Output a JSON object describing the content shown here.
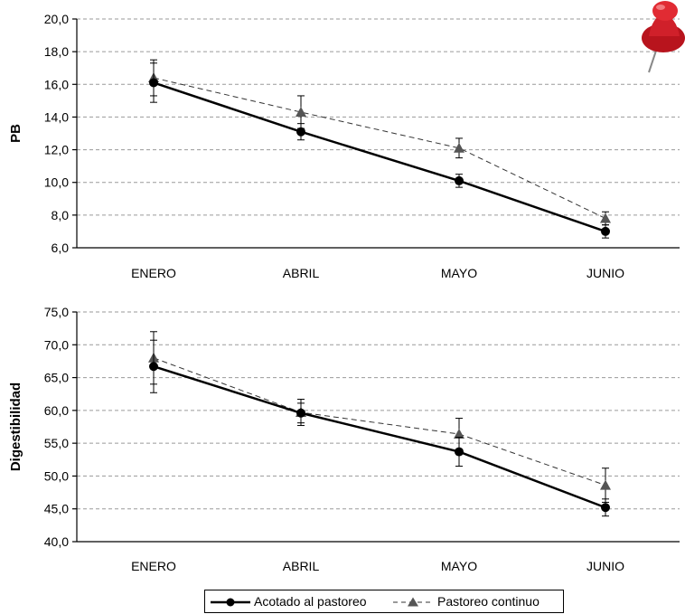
{
  "chart_data": [
    {
      "type": "line",
      "ylabel": "PB",
      "xlabel": "",
      "categories": [
        "ENERO",
        "ABRIL",
        "MAYO",
        "JUNIO"
      ],
      "ylim": [
        6.0,
        20.0
      ],
      "yticks": [
        "6,0",
        "8,0",
        "10,0",
        "12,0",
        "14,0",
        "16,0",
        "18,0",
        "20,0"
      ],
      "grid": true,
      "series": [
        {
          "name": "Acotado al pastoreo",
          "values": [
            16.1,
            13.1,
            10.1,
            7.0
          ],
          "err": [
            1.2,
            0.5,
            0.4,
            0.4
          ],
          "marker": "circle",
          "color": "#000000"
        },
        {
          "name": "Pastoreo continuo",
          "values": [
            16.4,
            14.3,
            12.1,
            7.8
          ],
          "err": [
            1.1,
            1.0,
            0.6,
            0.4
          ],
          "marker": "triangle",
          "color": "#333333"
        }
      ]
    },
    {
      "type": "line",
      "ylabel": "Digestibilidad",
      "xlabel": "",
      "categories": [
        "ENERO",
        "ABRIL",
        "MAYO",
        "JUNIO"
      ],
      "ylim": [
        40.0,
        75.0
      ],
      "yticks": [
        "40,0",
        "45,0",
        "50,0",
        "55,0",
        "60,0",
        "65,0",
        "70,0",
        "75,0"
      ],
      "grid": true,
      "series": [
        {
          "name": "Acotado al pastoreo",
          "values": [
            66.7,
            59.6,
            53.7,
            45.2
          ],
          "err": [
            4.0,
            1.5,
            2.2,
            1.3
          ],
          "marker": "circle",
          "color": "#000000"
        },
        {
          "name": "Pastoreo continuo",
          "values": [
            68.0,
            59.7,
            56.4,
            48.6
          ],
          "err": [
            4.0,
            2.0,
            2.4,
            2.6
          ],
          "marker": "triangle",
          "color": "#333333"
        }
      ]
    }
  ],
  "legend": {
    "items": [
      {
        "label": "Acotado al pastoreo"
      },
      {
        "label": "Pastoreo continuo"
      }
    ]
  },
  "decoration": {
    "pin_icon": "pushpin-icon",
    "pin_color": "#d0202a"
  }
}
